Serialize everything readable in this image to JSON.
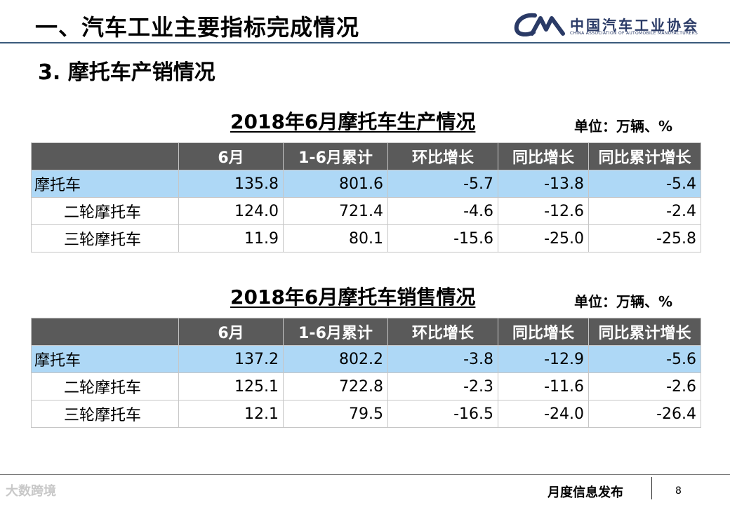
{
  "header": {
    "title": "一、汽车工业主要指标完成情况",
    "logo_cn": "中国汽车工业协会",
    "logo_en": "CHINA ASSOCIATION OF AUTOMOBILE MANUFACTURERS",
    "logo_mark": "CAAM"
  },
  "section_title": "3. 摩托车产销情况",
  "columns": [
    "",
    "6月",
    "1-6月累计",
    "环比增长",
    "同比增长",
    "同比累计增长"
  ],
  "production": {
    "title": "2018年6月摩托车生产情况",
    "unit": "单位：万辆、%",
    "rows": [
      {
        "name": "摩托车",
        "month": "135.8",
        "ytd": "801.6",
        "mom": "-5.7",
        "yoy": "-13.8",
        "yoy_ytd": "-5.4"
      },
      {
        "name": "二轮摩托车",
        "month": "124.0",
        "ytd": "721.4",
        "mom": "-4.6",
        "yoy": "-12.6",
        "yoy_ytd": "-2.4"
      },
      {
        "name": "三轮摩托车",
        "month": "11.9",
        "ytd": "80.1",
        "mom": "-15.6",
        "yoy": "-25.0",
        "yoy_ytd": "-25.8"
      }
    ]
  },
  "sales": {
    "title": "2018年6月摩托车销售情况",
    "unit": "单位：万辆、%",
    "rows": [
      {
        "name": "摩托车",
        "month": "137.2",
        "ytd": "802.2",
        "mom": "-3.8",
        "yoy": "-12.9",
        "yoy_ytd": "-5.6"
      },
      {
        "name": "二轮摩托车",
        "month": "125.1",
        "ytd": "722.8",
        "mom": "-2.3",
        "yoy": "-11.6",
        "yoy_ytd": "-2.6"
      },
      {
        "name": "三轮摩托车",
        "month": "12.1",
        "ytd": "79.5",
        "mom": "-16.5",
        "yoy": "-24.0",
        "yoy_ytd": "-26.4"
      }
    ]
  },
  "footer": {
    "label": "月度信息发布",
    "page_number": "8",
    "watermark": "大数跨境"
  },
  "colors": {
    "header_row": "#5a5a5a",
    "highlight_row": "#aed8f6",
    "logo": "#2a3a66",
    "header_rule": "#3a5a7c"
  }
}
